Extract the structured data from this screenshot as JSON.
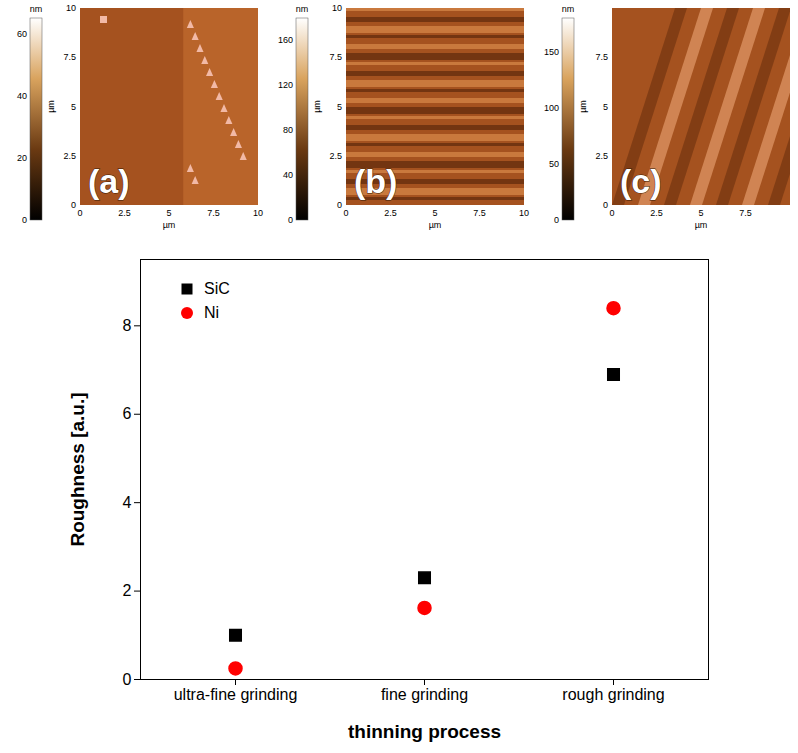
{
  "chart_data": {
    "type": "scatter",
    "categories": [
      "ultra-fine grinding",
      "fine grinding",
      "rough grinding"
    ],
    "series": [
      {
        "name": "SiC",
        "color": "#000000",
        "marker": "square",
        "values": [
          1.0,
          2.3,
          6.9
        ]
      },
      {
        "name": "Ni",
        "color": "#ff0000",
        "marker": "circle",
        "values": [
          0.25,
          1.62,
          8.4
        ]
      }
    ],
    "xlabel": "thinning process",
    "ylabel": "Roughness [a.u.]",
    "ylim": [
      0,
      9.5
    ],
    "yticks": [
      0,
      2,
      4,
      6,
      8
    ],
    "legend": "top-left",
    "grid": false
  },
  "panels": [
    {
      "label": "(a)",
      "colorbar_unit": "nm",
      "colorbar_range": [
        0,
        65
      ],
      "colorbar_ticks": [
        0,
        20,
        40,
        60
      ],
      "axis_unit": "µm",
      "axis_range": [
        0,
        10
      ],
      "axis_ticks": [
        0,
        2.5,
        5,
        7.5,
        10
      ]
    },
    {
      "label": "(b)",
      "colorbar_unit": "nm",
      "colorbar_range": [
        0,
        180
      ],
      "colorbar_ticks": [
        0,
        40,
        80,
        120,
        160
      ],
      "axis_unit": "µm",
      "axis_range": [
        0,
        10
      ],
      "axis_ticks": [
        0,
        2.5,
        5,
        7.5,
        10
      ]
    },
    {
      "label": "(c)",
      "colorbar_unit": "nm",
      "colorbar_range": [
        0,
        180
      ],
      "colorbar_ticks": [
        0,
        50,
        100,
        150
      ],
      "axis_unit": "µm",
      "axis_range": [
        0,
        10
      ],
      "axis_ticks": [
        0,
        2.5,
        5,
        7.5
      ]
    }
  ]
}
